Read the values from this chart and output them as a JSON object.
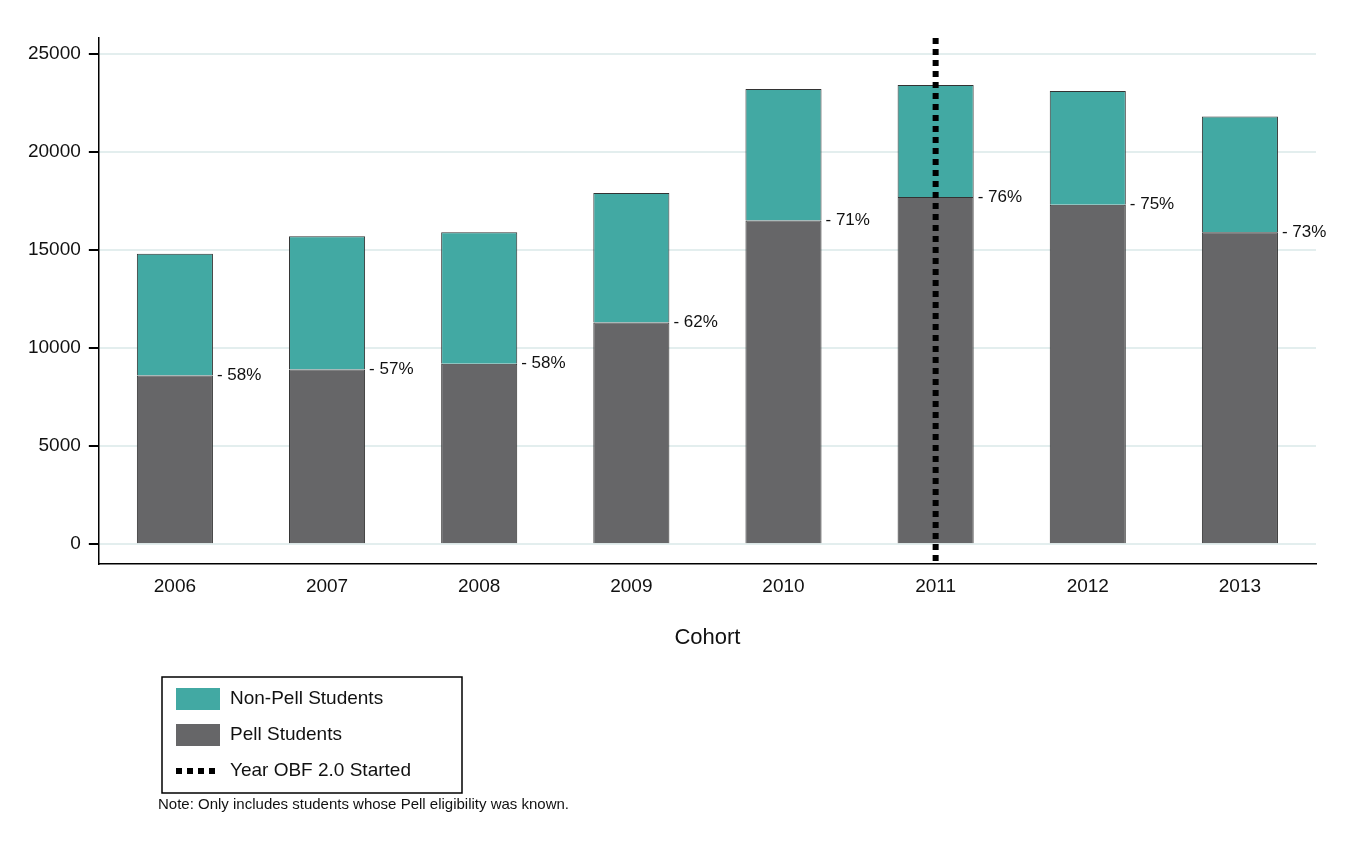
{
  "chart_data": {
    "type": "bar",
    "stacked": true,
    "xlabel": "Cohort",
    "categories": [
      "2006",
      "2007",
      "2008",
      "2009",
      "2010",
      "2011",
      "2012",
      "2013"
    ],
    "series": [
      {
        "name": "Pell Students",
        "color": "#666668",
        "values": [
          8600,
          8900,
          9200,
          11300,
          16500,
          17700,
          17300,
          15900
        ]
      },
      {
        "name": "Non-Pell Students",
        "color": "#42a9a3",
        "values": [
          6200,
          6800,
          6700,
          6600,
          6700,
          5700,
          5800,
          5900
        ]
      }
    ],
    "ylim": [
      -1000,
      25800
    ],
    "yticks": [
      0,
      5000,
      10000,
      15000,
      20000,
      25000
    ],
    "grid": "y",
    "legend": "bottom",
    "ref_lines": [
      {
        "axis": "x",
        "value": "2011",
        "label": "Year OBF 2.0 Started",
        "color": "#000000",
        "line_style": "dotted"
      }
    ],
    "annotations": [
      {
        "text": "- 58%",
        "x": "2006",
        "y": 8600
      },
      {
        "text": "- 57%",
        "x": "2007",
        "y": 8900
      },
      {
        "text": "- 58%",
        "x": "2008",
        "y": 9200
      },
      {
        "text": "- 62%",
        "x": "2009",
        "y": 11300
      },
      {
        "text": "- 71%",
        "x": "2010",
        "y": 16500
      },
      {
        "text": "- 76%",
        "x": "2011",
        "y": 17700
      },
      {
        "text": "- 75%",
        "x": "2012",
        "y": 17300
      },
      {
        "text": "- 73%",
        "x": "2013",
        "y": 15900
      },
      "Note: Only includes students whose Pell eligibility was known."
    ]
  }
}
